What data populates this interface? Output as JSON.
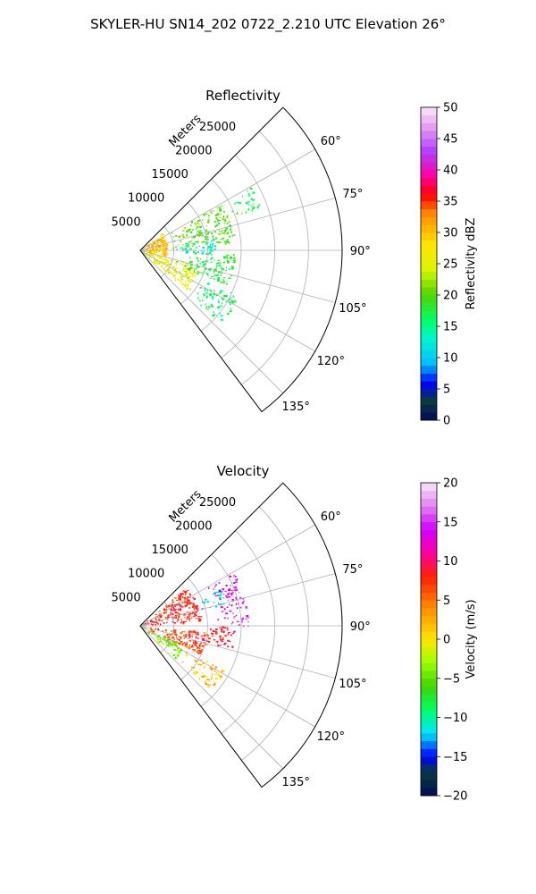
{
  "figure": {
    "suptitle": "SKYLER-HU  SN14_202  0722_2.210 UTC Elevation 26°"
  },
  "chart_data": [
    {
      "type": "heatmap",
      "subtype": "polar-sector",
      "title": "Reflectivity",
      "radial_label": "Meters",
      "theta_ticks": [
        "60°",
        "75°",
        "90°",
        "105°",
        "120°",
        "135°"
      ],
      "theta_tick_values": [
        60,
        75,
        90,
        105,
        120,
        135
      ],
      "theta_range_deg": [
        45,
        143
      ],
      "r_ticks": [
        "5000",
        "10000",
        "15000",
        "20000",
        "25000"
      ],
      "r_tick_values": [
        5000,
        10000,
        15000,
        20000,
        25000
      ],
      "r_range": [
        0,
        30000
      ],
      "data_extent_r": [
        0,
        20000
      ],
      "grid": true,
      "colorbar": {
        "label": "Reflectivity dBZ",
        "range": [
          0,
          50
        ],
        "ticks": [
          "0",
          "5",
          "10",
          "15",
          "20",
          "25",
          "30",
          "35",
          "40",
          "45",
          "50"
        ],
        "tick_values": [
          0,
          5,
          10,
          15,
          20,
          25,
          30,
          35,
          40,
          45,
          50
        ],
        "palette": [
          {
            "v": 0,
            "color": "#000a5a"
          },
          {
            "v": 3,
            "color": "#0b3b3b"
          },
          {
            "v": 6,
            "color": "#0000ff"
          },
          {
            "v": 9,
            "color": "#00bfff"
          },
          {
            "v": 13,
            "color": "#00f5d0"
          },
          {
            "v": 16,
            "color": "#00ff66"
          },
          {
            "v": 20,
            "color": "#4cd400"
          },
          {
            "v": 24,
            "color": "#d8f500"
          },
          {
            "v": 28,
            "color": "#ffe600"
          },
          {
            "v": 33,
            "color": "#ff8c00"
          },
          {
            "v": 36,
            "color": "#ff0000"
          },
          {
            "v": 39,
            "color": "#ff00a0"
          },
          {
            "v": 43,
            "color": "#b040ff"
          },
          {
            "v": 47,
            "color": "#e8a0f0"
          },
          {
            "v": 50,
            "color": "#f8e8f8"
          }
        ]
      },
      "field_summary": [
        {
          "theta": [
            50,
            100
          ],
          "r": [
            0,
            4000
          ],
          "value": 30
        },
        {
          "theta": [
            105,
            130
          ],
          "r": [
            0,
            9000
          ],
          "value": 26
        },
        {
          "theta": [
            60,
            85
          ],
          "r": [
            4000,
            14000
          ],
          "value": 20
        },
        {
          "theta": [
            80,
            92
          ],
          "r": [
            5000,
            11000
          ],
          "value": 13
        },
        {
          "theta": [
            92,
            112
          ],
          "r": [
            5000,
            14000
          ],
          "value": 18
        },
        {
          "theta": [
            115,
            132
          ],
          "r": [
            9000,
            16000
          ],
          "value": 16
        },
        {
          "theta": [
            60,
            70
          ],
          "r": [
            14000,
            19000
          ],
          "value": 17
        }
      ]
    },
    {
      "type": "heatmap",
      "subtype": "polar-sector",
      "title": "Velocity",
      "radial_label": "Meters",
      "theta_ticks": [
        "60°",
        "75°",
        "90°",
        "105°",
        "120°",
        "135°"
      ],
      "theta_tick_values": [
        60,
        75,
        90,
        105,
        120,
        135
      ],
      "theta_range_deg": [
        45,
        143
      ],
      "r_ticks": [
        "5000",
        "10000",
        "15000",
        "20000",
        "25000"
      ],
      "r_tick_values": [
        5000,
        10000,
        15000,
        20000,
        25000
      ],
      "r_range": [
        0,
        30000
      ],
      "data_extent_r": [
        0,
        20000
      ],
      "grid": true,
      "colorbar": {
        "label": "Velocity (m/s)",
        "range": [
          -20,
          20
        ],
        "ticks": [
          "−20",
          "−15",
          "−10",
          "−5",
          "0",
          "5",
          "10",
          "15",
          "20"
        ],
        "tick_values": [
          -20,
          -15,
          -10,
          -5,
          0,
          5,
          10,
          15,
          20
        ],
        "palette": [
          {
            "v": -20,
            "color": "#000a5a"
          },
          {
            "v": -17,
            "color": "#0b3b3b"
          },
          {
            "v": -15,
            "color": "#0000ff"
          },
          {
            "v": -12,
            "color": "#00e5ff"
          },
          {
            "v": -9,
            "color": "#00ff66"
          },
          {
            "v": -6,
            "color": "#3ed400"
          },
          {
            "v": -3,
            "color": "#9cff00"
          },
          {
            "v": 0,
            "color": "#ffe600"
          },
          {
            "v": 4,
            "color": "#ff8c00"
          },
          {
            "v": 8,
            "color": "#ff2000"
          },
          {
            "v": 11,
            "color": "#ff00a0"
          },
          {
            "v": 14,
            "color": "#d000ff"
          },
          {
            "v": 17,
            "color": "#e080f0"
          },
          {
            "v": 20,
            "color": "#f8e8f8"
          }
        ]
      },
      "field_summary": [
        {
          "theta": [
            50,
            85
          ],
          "r": [
            0,
            9000
          ],
          "value": 8
        },
        {
          "theta": [
            95,
            115
          ],
          "r": [
            0,
            10000
          ],
          "value": 7
        },
        {
          "theta": [
            115,
            132
          ],
          "r": [
            0,
            7000
          ],
          "value": -4
        },
        {
          "theta": [
            118,
            132
          ],
          "r": [
            7000,
            14000
          ],
          "value": 2
        },
        {
          "theta": [
            65,
            75
          ],
          "r": [
            9000,
            13000
          ],
          "value": -12
        },
        {
          "theta": [
            60,
            90
          ],
          "r": [
            11000,
            16000
          ],
          "value": 14
        },
        {
          "theta": [
            90,
            105
          ],
          "r": [
            8000,
            14000
          ],
          "value": 9
        }
      ]
    }
  ]
}
